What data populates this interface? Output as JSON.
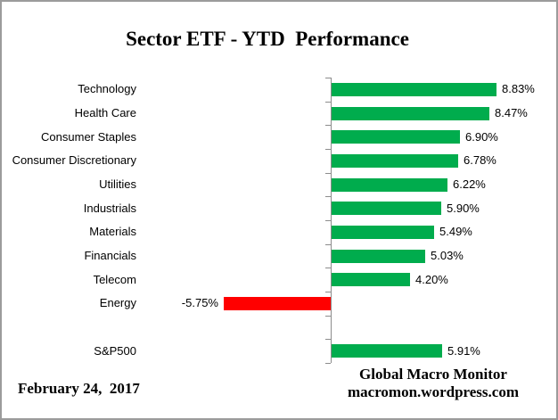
{
  "title": "Sector ETF - YTD  Performance",
  "footer": {
    "date": "February 24,  2017",
    "brand_line1": "Global Macro Monitor",
    "brand_line2": "macromon.wordpress.com"
  },
  "colors": {
    "bar_positive": "#00AC4D",
    "bar_negative": "#FF0000",
    "axis": "#8C8C8C",
    "border": "#9B9B9B",
    "text": "#000000"
  },
  "chart_data": {
    "type": "bar",
    "orientation": "horizontal",
    "title": "Sector ETF - YTD  Performance",
    "categories": [
      "Technology",
      "Health Care",
      "Consumer Staples",
      "Consumer Discretionary",
      "Utilities",
      "Industrials",
      "Materials",
      "Financials",
      "Telecom",
      "Energy",
      "",
      "S&P500"
    ],
    "values": [
      8.83,
      8.47,
      6.9,
      6.78,
      6.22,
      5.9,
      5.49,
      5.03,
      4.2,
      -5.75,
      null,
      5.91
    ],
    "value_labels": [
      "8.83%",
      "8.47%",
      "6.90%",
      "6.78%",
      "6.22%",
      "5.90%",
      "5.49%",
      "5.03%",
      "4.20%",
      "-5.75%",
      "",
      "5.91%"
    ],
    "units": "percent",
    "baseline": 0,
    "value_axis_visible": false,
    "gridlines": false,
    "legend": "none",
    "bar_color_rule": "green if positive, red if negative"
  }
}
